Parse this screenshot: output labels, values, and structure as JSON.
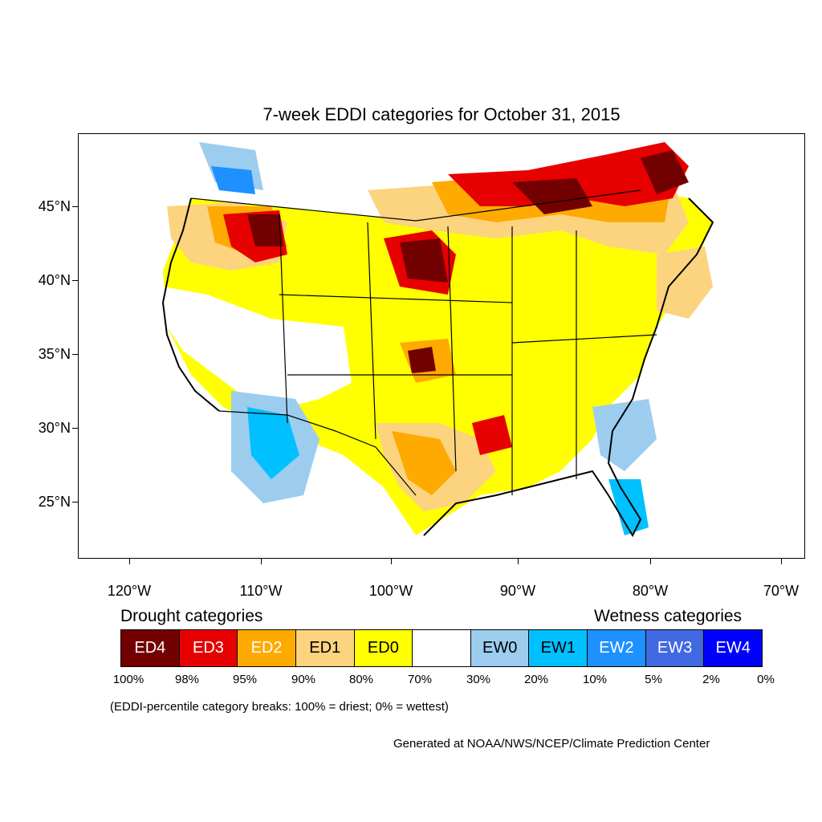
{
  "title": "7-week EDDI categories for October 31, 2015",
  "lat_labels": [
    "45°N",
    "40°N",
    "35°N",
    "30°N",
    "25°N"
  ],
  "lon_labels": [
    "120°W",
    "110°W",
    "100°W",
    "90°W",
    "80°W",
    "70°W"
  ],
  "legend": {
    "drought_heading": "Drought categories",
    "wetness_heading": "Wetness categories",
    "categories": [
      {
        "label": "ED4",
        "color": "#730000",
        "text_color": "#ffffff"
      },
      {
        "label": "ED3",
        "color": "#e60000",
        "text_color": "#ffffff"
      },
      {
        "label": "ED2",
        "color": "#ffaa00",
        "text_color": "#ffffff"
      },
      {
        "label": "ED1",
        "color": "#fcd37f",
        "text_color": "#000000"
      },
      {
        "label": "ED0",
        "color": "#ffff00",
        "text_color": "#000000"
      },
      {
        "label": "",
        "color": "#ffffff",
        "text_color": "#000000"
      },
      {
        "label": "EW0",
        "color": "#9ccdee",
        "text_color": "#000000"
      },
      {
        "label": "EW1",
        "color": "#00c0ff",
        "text_color": "#000000"
      },
      {
        "label": "EW2",
        "color": "#1e90ff",
        "text_color": "#ffffff"
      },
      {
        "label": "EW3",
        "color": "#4169e1",
        "text_color": "#ffffff"
      },
      {
        "label": "EW4",
        "color": "#0000ff",
        "text_color": "#ffffff"
      }
    ],
    "breaks": [
      "100%",
      "98%",
      "95%",
      "90%",
      "80%",
      "70%",
      "30%",
      "20%",
      "10%",
      "5%",
      "2%",
      "0%"
    ]
  },
  "breaks_note": "(EDDI-percentile category breaks: 100% = driest; 0% = wettest)",
  "credit": "Generated at NOAA/NWS/NCEP/Climate Prediction Center"
}
